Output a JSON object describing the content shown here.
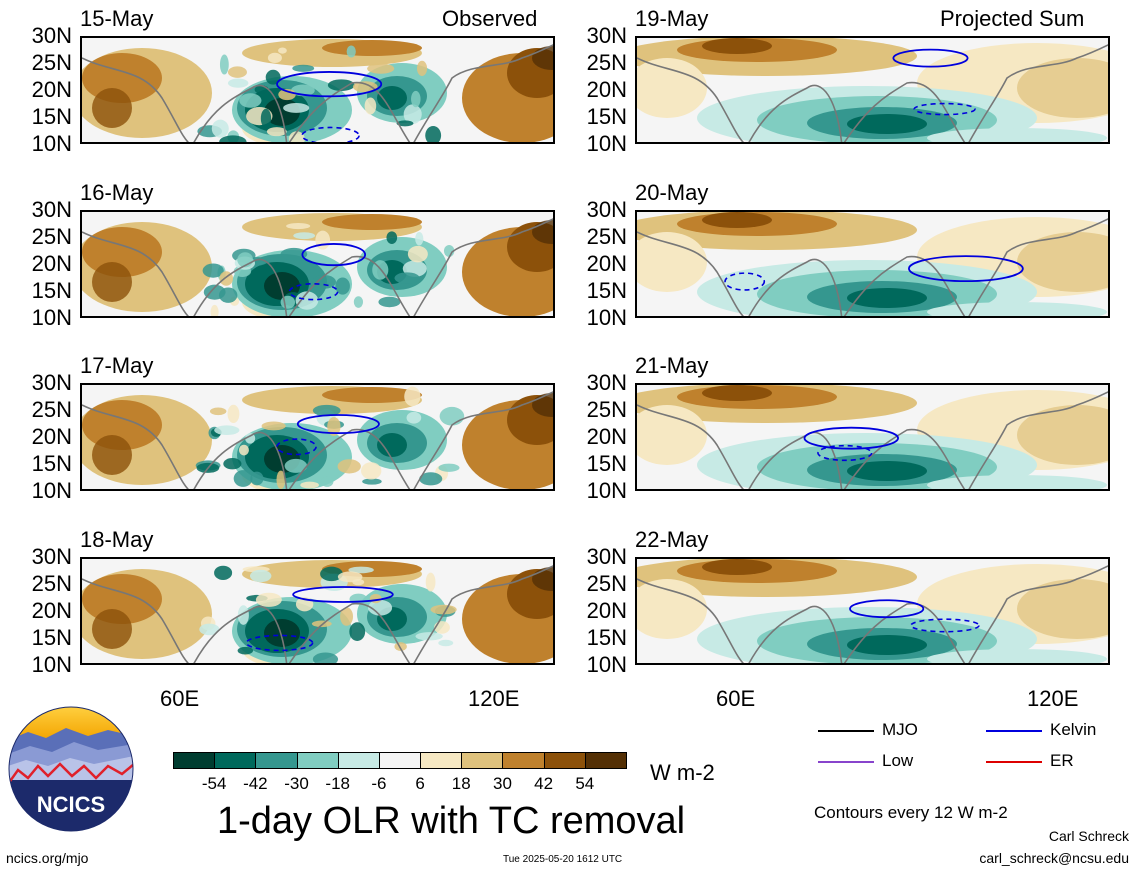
{
  "header": {
    "observed_label": "Observed",
    "projected_label": "Projected Sum"
  },
  "panels": {
    "observed": [
      {
        "date": "15-May"
      },
      {
        "date": "16-May"
      },
      {
        "date": "17-May"
      },
      {
        "date": "18-May"
      }
    ],
    "projected": [
      {
        "date": "19-May"
      },
      {
        "date": "20-May"
      },
      {
        "date": "21-May"
      },
      {
        "date": "22-May"
      }
    ]
  },
  "axes": {
    "lat_labels": [
      "30N",
      "25N",
      "20N",
      "15N",
      "10N"
    ],
    "lon_labels": [
      "60E",
      "120E"
    ]
  },
  "colorbar": {
    "tick_labels": [
      "-54",
      "-42",
      "-30",
      "-18",
      "-6",
      "6",
      "18",
      "30",
      "42",
      "54"
    ],
    "colors": [
      "#003d30",
      "#00695c",
      "#35978f",
      "#80cdc1",
      "#c7eae5",
      "#f5f5f5",
      "#f6e8c3",
      "#dfc27d",
      "#bf812d",
      "#8c510a",
      "#543005"
    ],
    "units": "W m-2"
  },
  "title": "1-day OLR with TC removal",
  "legend": {
    "mjo": {
      "label": "MJO",
      "color": "#000000"
    },
    "kelvin": {
      "label": "Kelvin",
      "color": "#0000dd"
    },
    "low": {
      "label": "Low",
      "color": "#8844cc"
    },
    "er": {
      "label": "ER",
      "color": "#dd0000"
    }
  },
  "contour_note": "Contours every 12 W m-2",
  "credits": {
    "author": "Carl Schreck",
    "email": "carl_schreck@ncsu.edu",
    "site": "ncics.org/mjo",
    "timestamp": "Tue 2025-05-20 1612 UTC"
  },
  "logo": {
    "text": "NCICS"
  }
}
